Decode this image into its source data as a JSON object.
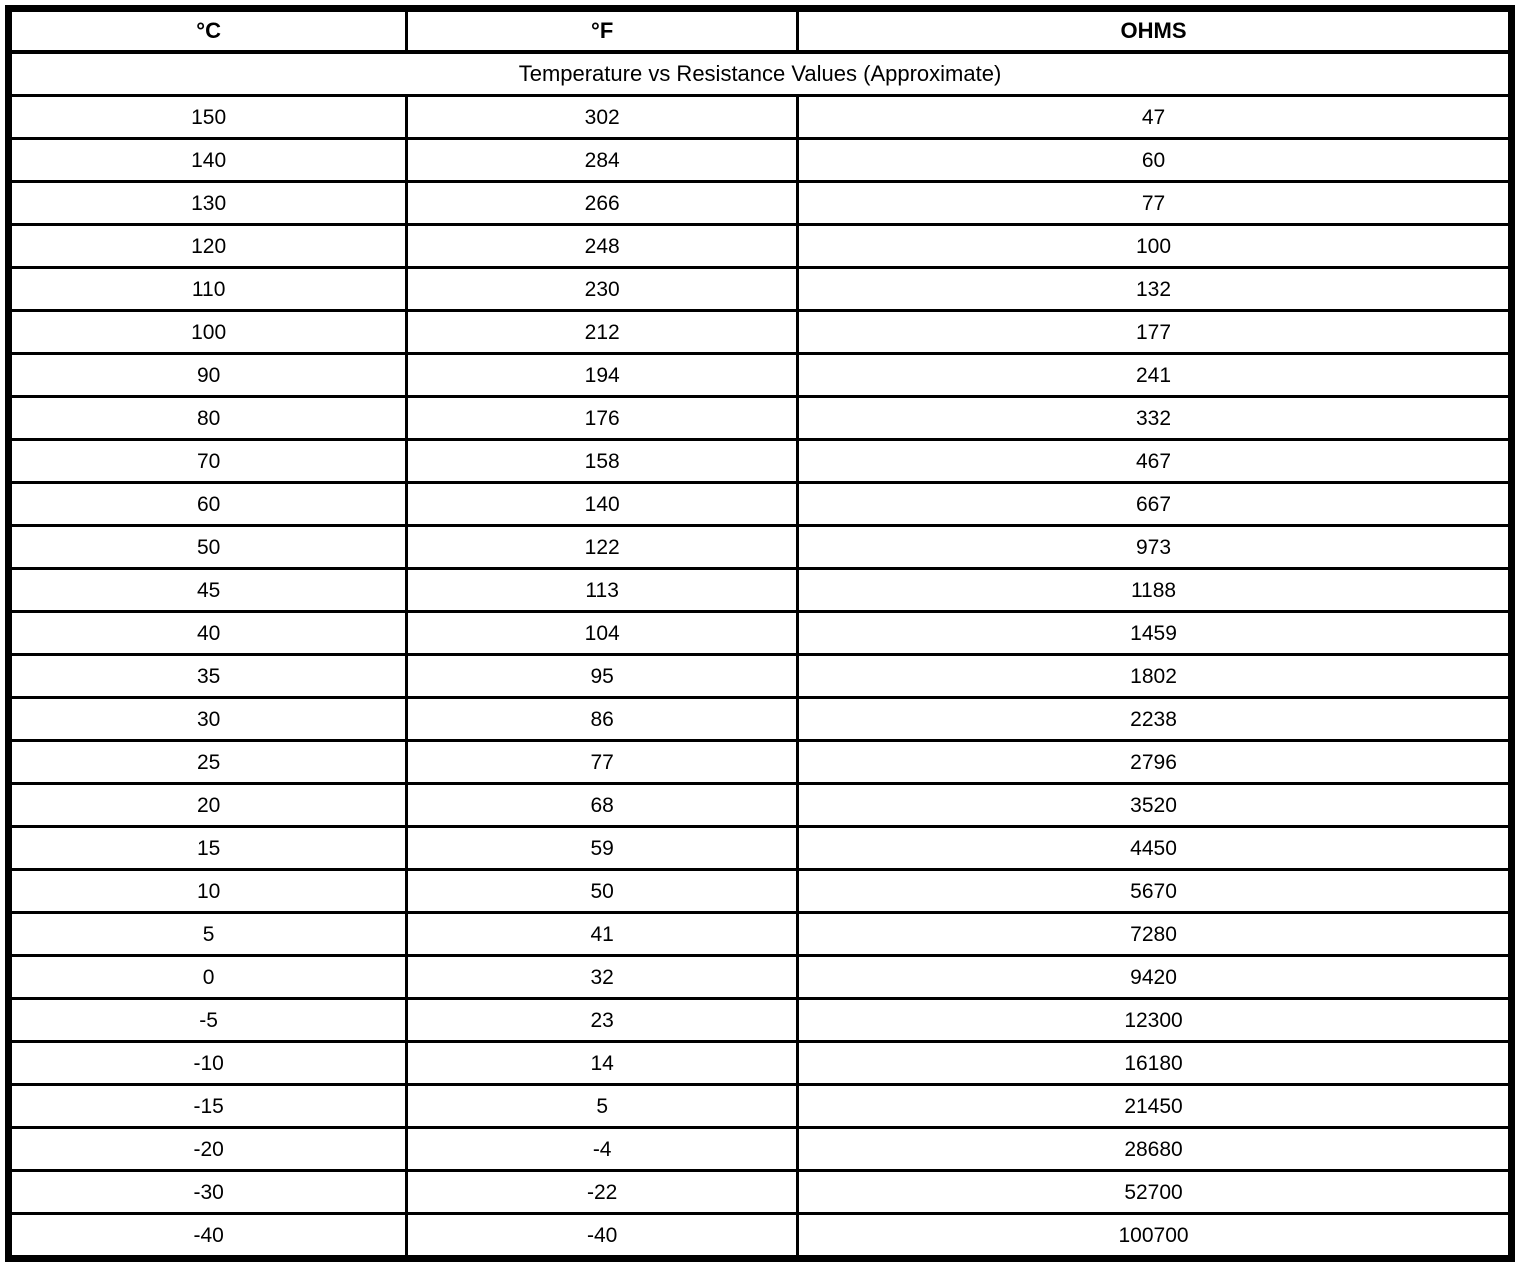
{
  "table": {
    "columns": [
      {
        "key": "celsius",
        "label": "°C"
      },
      {
        "key": "fahrenheit",
        "label": "°F"
      },
      {
        "key": "ohms",
        "label": "OHMS"
      }
    ],
    "title": "Temperature vs Resistance Values (Approximate)",
    "rows": [
      [
        "150",
        "302",
        "47"
      ],
      [
        "140",
        "284",
        "60"
      ],
      [
        "130",
        "266",
        "77"
      ],
      [
        "120",
        "248",
        "100"
      ],
      [
        "110",
        "230",
        "132"
      ],
      [
        "100",
        "212",
        "177"
      ],
      [
        "90",
        "194",
        "241"
      ],
      [
        "80",
        "176",
        "332"
      ],
      [
        "70",
        "158",
        "467"
      ],
      [
        "60",
        "140",
        "667"
      ],
      [
        "50",
        "122",
        "973"
      ],
      [
        "45",
        "113",
        "1188"
      ],
      [
        "40",
        "104",
        "1459"
      ],
      [
        "35",
        "95",
        "1802"
      ],
      [
        "30",
        "86",
        "2238"
      ],
      [
        "25",
        "77",
        "2796"
      ],
      [
        "20",
        "68",
        "3520"
      ],
      [
        "15",
        "59",
        "4450"
      ],
      [
        "10",
        "50",
        "5670"
      ],
      [
        "5",
        "41",
        "7280"
      ],
      [
        "0",
        "32",
        "9420"
      ],
      [
        "-5",
        "23",
        "12300"
      ],
      [
        "-10",
        "14",
        "16180"
      ],
      [
        "-15",
        "5",
        "21450"
      ],
      [
        "-20",
        "-4",
        "28680"
      ],
      [
        "-30",
        "-22",
        "52700"
      ],
      [
        "-40",
        "-40",
        "100700"
      ]
    ],
    "colors": {
      "border": "#000000",
      "background": "#ffffff",
      "text": "#000000"
    }
  },
  "chart_data": {
    "type": "table",
    "title": "Temperature vs Resistance Values (Approximate)",
    "columns": [
      "°C",
      "°F",
      "OHMS"
    ],
    "celsius": [
      150,
      140,
      130,
      120,
      110,
      100,
      90,
      80,
      70,
      60,
      50,
      45,
      40,
      35,
      30,
      25,
      20,
      15,
      10,
      5,
      0,
      -5,
      -10,
      -15,
      -20,
      -30,
      -40
    ],
    "fahrenheit": [
      302,
      284,
      266,
      248,
      230,
      212,
      194,
      176,
      158,
      140,
      122,
      113,
      104,
      95,
      86,
      77,
      68,
      59,
      50,
      41,
      32,
      23,
      14,
      5,
      -4,
      -22,
      -40
    ],
    "ohms": [
      47,
      60,
      77,
      100,
      132,
      177,
      241,
      332,
      467,
      667,
      973,
      1188,
      1459,
      1802,
      2238,
      2796,
      3520,
      4450,
      5670,
      7280,
      9420,
      12300,
      16180,
      21450,
      28680,
      52700,
      100700
    ]
  }
}
